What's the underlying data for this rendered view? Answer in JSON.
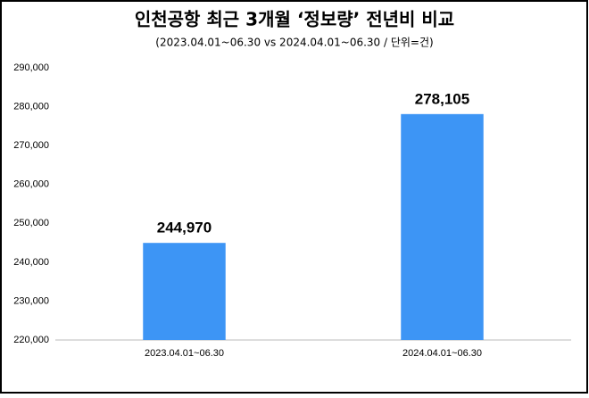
{
  "chart_data": {
    "type": "bar",
    "title": "인천공항 최근 3개월 ‘정보량’ 전년비 비교",
    "subtitle": "(2023.04.01~06.30 vs 2024.04.01~06.30 / 단위=건)",
    "categories": [
      "2023.04.01~06.30",
      "2024.04.01~06.30"
    ],
    "values": [
      244970,
      278105
    ],
    "value_labels": [
      "244,970",
      "278,105"
    ],
    "color": "#3d95f5",
    "ylim": [
      220000,
      290000
    ],
    "yticks": [
      {
        "value": 220000,
        "label": "220,000"
      },
      {
        "value": 230000,
        "label": "230,000"
      },
      {
        "value": 240000,
        "label": "240,000"
      },
      {
        "value": 250000,
        "label": "250,000"
      },
      {
        "value": 260000,
        "label": "260,000"
      },
      {
        "value": 270000,
        "label": "270,000"
      },
      {
        "value": 280000,
        "label": "280,000"
      },
      {
        "value": 290000,
        "label": "290,000"
      }
    ],
    "grid": false
  }
}
